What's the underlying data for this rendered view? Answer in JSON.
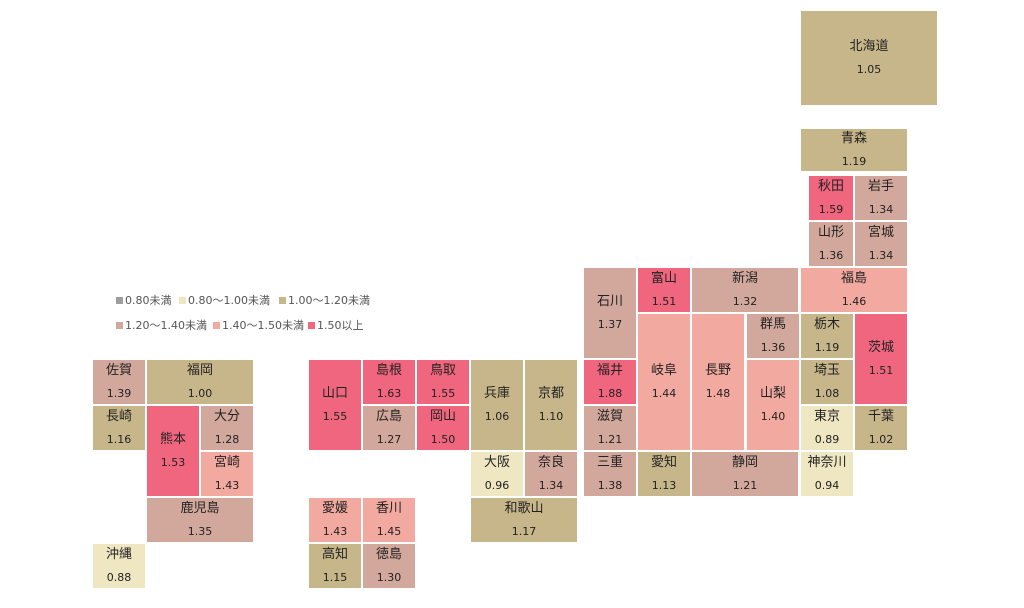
{
  "legend": [
    {
      "label": "0.80未満",
      "color": "#9e9e9e"
    },
    {
      "label": "0.80～1.00未満",
      "color": "#efe6c2"
    },
    {
      "label": "1.00～1.20未満",
      "color": "#c7b68a"
    },
    {
      "label": "1.20～1.40未満",
      "color": "#d3a89c"
    },
    {
      "label": "1.40～1.50未満",
      "color": "#f2a9a0"
    },
    {
      "label": "1.50以上",
      "color": "#f0667f"
    }
  ],
  "prefectures": [
    {
      "name": "北海道",
      "value": "1.05",
      "color": "#c7b68a"
    },
    {
      "name": "青森",
      "value": "1.19",
      "color": "#c7b68a"
    },
    {
      "name": "秋田",
      "value": "1.59",
      "color": "#f0667f"
    },
    {
      "name": "岩手",
      "value": "1.34",
      "color": "#d3a89c"
    },
    {
      "name": "山形",
      "value": "1.36",
      "color": "#d3a89c"
    },
    {
      "name": "宮城",
      "value": "1.34",
      "color": "#d3a89c"
    },
    {
      "name": "石川",
      "value": "1.37",
      "color": "#d3a89c"
    },
    {
      "name": "富山",
      "value": "1.51",
      "color": "#f0667f"
    },
    {
      "name": "新潟",
      "value": "1.32",
      "color": "#d3a89c"
    },
    {
      "name": "福島",
      "value": "1.46",
      "color": "#f2a9a0"
    },
    {
      "name": "群馬",
      "value": "1.36",
      "color": "#d3a89c"
    },
    {
      "name": "栃木",
      "value": "1.19",
      "color": "#c7b68a"
    },
    {
      "name": "茨城",
      "value": "1.51",
      "color": "#f0667f"
    },
    {
      "name": "佐賀",
      "value": "1.39",
      "color": "#d3a89c"
    },
    {
      "name": "福岡",
      "value": "1.00",
      "color": "#c7b68a"
    },
    {
      "name": "山口",
      "value": "1.55",
      "color": "#f0667f"
    },
    {
      "name": "島根",
      "value": "1.63",
      "color": "#f0667f"
    },
    {
      "name": "鳥取",
      "value": "1.55",
      "color": "#f0667f"
    },
    {
      "name": "兵庫",
      "value": "1.06",
      "color": "#c7b68a"
    },
    {
      "name": "京都",
      "value": "1.10",
      "color": "#c7b68a"
    },
    {
      "name": "福井",
      "value": "1.88",
      "color": "#f0667f"
    },
    {
      "name": "岐阜",
      "value": "1.44",
      "color": "#f2a9a0"
    },
    {
      "name": "長野",
      "value": "1.48",
      "color": "#f2a9a0"
    },
    {
      "name": "山梨",
      "value": "1.40",
      "color": "#f2a9a0"
    },
    {
      "name": "埼玉",
      "value": "1.08",
      "color": "#c7b68a"
    },
    {
      "name": "長崎",
      "value": "1.16",
      "color": "#c7b68a"
    },
    {
      "name": "熊本",
      "value": "1.53",
      "color": "#f0667f"
    },
    {
      "name": "大分",
      "value": "1.28",
      "color": "#d3a89c"
    },
    {
      "name": "広島",
      "value": "1.27",
      "color": "#d3a89c"
    },
    {
      "name": "岡山",
      "value": "1.50",
      "color": "#f0667f"
    },
    {
      "name": "滋賀",
      "value": "1.21",
      "color": "#d3a89c"
    },
    {
      "name": "東京",
      "value": "0.89",
      "color": "#efe6c2"
    },
    {
      "name": "千葉",
      "value": "1.02",
      "color": "#c7b68a"
    },
    {
      "name": "宮崎",
      "value": "1.43",
      "color": "#f2a9a0"
    },
    {
      "name": "大阪",
      "value": "0.96",
      "color": "#efe6c2"
    },
    {
      "name": "奈良",
      "value": "1.34",
      "color": "#d3a89c"
    },
    {
      "name": "三重",
      "value": "1.38",
      "color": "#d3a89c"
    },
    {
      "name": "愛知",
      "value": "1.13",
      "color": "#c7b68a"
    },
    {
      "name": "静岡",
      "value": "1.21",
      "color": "#d3a89c"
    },
    {
      "name": "神奈川",
      "value": "0.94",
      "color": "#efe6c2"
    },
    {
      "name": "鹿児島",
      "value": "1.35",
      "color": "#d3a89c"
    },
    {
      "name": "愛媛",
      "value": "1.43",
      "color": "#f2a9a0"
    },
    {
      "name": "香川",
      "value": "1.45",
      "color": "#f2a9a0"
    },
    {
      "name": "和歌山",
      "value": "1.17",
      "color": "#c7b68a"
    },
    {
      "name": "沖縄",
      "value": "0.88",
      "color": "#efe6c2"
    },
    {
      "name": "高知",
      "value": "1.15",
      "color": "#c7b68a"
    },
    {
      "name": "徳島",
      "value": "1.30",
      "color": "#d3a89c"
    }
  ]
}
